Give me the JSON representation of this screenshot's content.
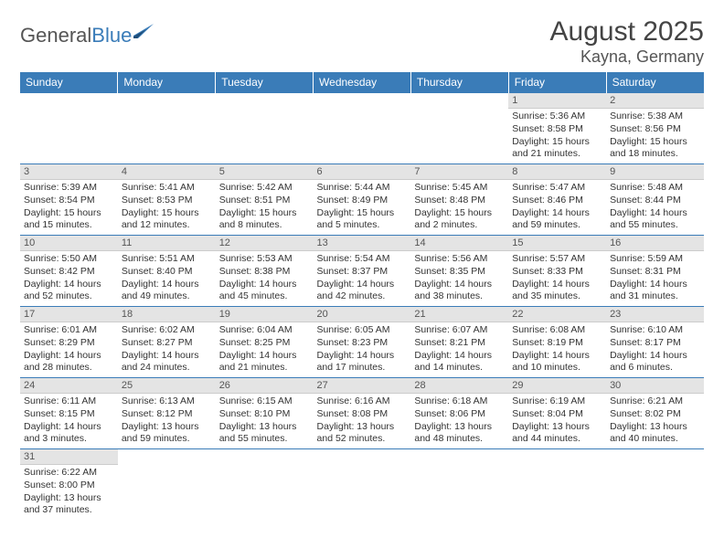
{
  "brand": {
    "part1": "General",
    "part2": "Blue"
  },
  "title": "August 2025",
  "location": "Kayna, Germany",
  "colors": {
    "header_bg": "#3a7cb8",
    "header_text": "#ffffff",
    "daynum_bg": "#e4e4e4",
    "row_border": "#3a7cb8"
  },
  "dayHeaders": [
    "Sunday",
    "Monday",
    "Tuesday",
    "Wednesday",
    "Thursday",
    "Friday",
    "Saturday"
  ],
  "weeks": [
    [
      {
        "n": "",
        "sr": "",
        "ss": "",
        "dl": ""
      },
      {
        "n": "",
        "sr": "",
        "ss": "",
        "dl": ""
      },
      {
        "n": "",
        "sr": "",
        "ss": "",
        "dl": ""
      },
      {
        "n": "",
        "sr": "",
        "ss": "",
        "dl": ""
      },
      {
        "n": "",
        "sr": "",
        "ss": "",
        "dl": ""
      },
      {
        "n": "1",
        "sr": "Sunrise: 5:36 AM",
        "ss": "Sunset: 8:58 PM",
        "dl": "Daylight: 15 hours and 21 minutes."
      },
      {
        "n": "2",
        "sr": "Sunrise: 5:38 AM",
        "ss": "Sunset: 8:56 PM",
        "dl": "Daylight: 15 hours and 18 minutes."
      }
    ],
    [
      {
        "n": "3",
        "sr": "Sunrise: 5:39 AM",
        "ss": "Sunset: 8:54 PM",
        "dl": "Daylight: 15 hours and 15 minutes."
      },
      {
        "n": "4",
        "sr": "Sunrise: 5:41 AM",
        "ss": "Sunset: 8:53 PM",
        "dl": "Daylight: 15 hours and 12 minutes."
      },
      {
        "n": "5",
        "sr": "Sunrise: 5:42 AM",
        "ss": "Sunset: 8:51 PM",
        "dl": "Daylight: 15 hours and 8 minutes."
      },
      {
        "n": "6",
        "sr": "Sunrise: 5:44 AM",
        "ss": "Sunset: 8:49 PM",
        "dl": "Daylight: 15 hours and 5 minutes."
      },
      {
        "n": "7",
        "sr": "Sunrise: 5:45 AM",
        "ss": "Sunset: 8:48 PM",
        "dl": "Daylight: 15 hours and 2 minutes."
      },
      {
        "n": "8",
        "sr": "Sunrise: 5:47 AM",
        "ss": "Sunset: 8:46 PM",
        "dl": "Daylight: 14 hours and 59 minutes."
      },
      {
        "n": "9",
        "sr": "Sunrise: 5:48 AM",
        "ss": "Sunset: 8:44 PM",
        "dl": "Daylight: 14 hours and 55 minutes."
      }
    ],
    [
      {
        "n": "10",
        "sr": "Sunrise: 5:50 AM",
        "ss": "Sunset: 8:42 PM",
        "dl": "Daylight: 14 hours and 52 minutes."
      },
      {
        "n": "11",
        "sr": "Sunrise: 5:51 AM",
        "ss": "Sunset: 8:40 PM",
        "dl": "Daylight: 14 hours and 49 minutes."
      },
      {
        "n": "12",
        "sr": "Sunrise: 5:53 AM",
        "ss": "Sunset: 8:38 PM",
        "dl": "Daylight: 14 hours and 45 minutes."
      },
      {
        "n": "13",
        "sr": "Sunrise: 5:54 AM",
        "ss": "Sunset: 8:37 PM",
        "dl": "Daylight: 14 hours and 42 minutes."
      },
      {
        "n": "14",
        "sr": "Sunrise: 5:56 AM",
        "ss": "Sunset: 8:35 PM",
        "dl": "Daylight: 14 hours and 38 minutes."
      },
      {
        "n": "15",
        "sr": "Sunrise: 5:57 AM",
        "ss": "Sunset: 8:33 PM",
        "dl": "Daylight: 14 hours and 35 minutes."
      },
      {
        "n": "16",
        "sr": "Sunrise: 5:59 AM",
        "ss": "Sunset: 8:31 PM",
        "dl": "Daylight: 14 hours and 31 minutes."
      }
    ],
    [
      {
        "n": "17",
        "sr": "Sunrise: 6:01 AM",
        "ss": "Sunset: 8:29 PM",
        "dl": "Daylight: 14 hours and 28 minutes."
      },
      {
        "n": "18",
        "sr": "Sunrise: 6:02 AM",
        "ss": "Sunset: 8:27 PM",
        "dl": "Daylight: 14 hours and 24 minutes."
      },
      {
        "n": "19",
        "sr": "Sunrise: 6:04 AM",
        "ss": "Sunset: 8:25 PM",
        "dl": "Daylight: 14 hours and 21 minutes."
      },
      {
        "n": "20",
        "sr": "Sunrise: 6:05 AM",
        "ss": "Sunset: 8:23 PM",
        "dl": "Daylight: 14 hours and 17 minutes."
      },
      {
        "n": "21",
        "sr": "Sunrise: 6:07 AM",
        "ss": "Sunset: 8:21 PM",
        "dl": "Daylight: 14 hours and 14 minutes."
      },
      {
        "n": "22",
        "sr": "Sunrise: 6:08 AM",
        "ss": "Sunset: 8:19 PM",
        "dl": "Daylight: 14 hours and 10 minutes."
      },
      {
        "n": "23",
        "sr": "Sunrise: 6:10 AM",
        "ss": "Sunset: 8:17 PM",
        "dl": "Daylight: 14 hours and 6 minutes."
      }
    ],
    [
      {
        "n": "24",
        "sr": "Sunrise: 6:11 AM",
        "ss": "Sunset: 8:15 PM",
        "dl": "Daylight: 14 hours and 3 minutes."
      },
      {
        "n": "25",
        "sr": "Sunrise: 6:13 AM",
        "ss": "Sunset: 8:12 PM",
        "dl": "Daylight: 13 hours and 59 minutes."
      },
      {
        "n": "26",
        "sr": "Sunrise: 6:15 AM",
        "ss": "Sunset: 8:10 PM",
        "dl": "Daylight: 13 hours and 55 minutes."
      },
      {
        "n": "27",
        "sr": "Sunrise: 6:16 AM",
        "ss": "Sunset: 8:08 PM",
        "dl": "Daylight: 13 hours and 52 minutes."
      },
      {
        "n": "28",
        "sr": "Sunrise: 6:18 AM",
        "ss": "Sunset: 8:06 PM",
        "dl": "Daylight: 13 hours and 48 minutes."
      },
      {
        "n": "29",
        "sr": "Sunrise: 6:19 AM",
        "ss": "Sunset: 8:04 PM",
        "dl": "Daylight: 13 hours and 44 minutes."
      },
      {
        "n": "30",
        "sr": "Sunrise: 6:21 AM",
        "ss": "Sunset: 8:02 PM",
        "dl": "Daylight: 13 hours and 40 minutes."
      }
    ],
    [
      {
        "n": "31",
        "sr": "Sunrise: 6:22 AM",
        "ss": "Sunset: 8:00 PM",
        "dl": "Daylight: 13 hours and 37 minutes."
      },
      {
        "n": "",
        "sr": "",
        "ss": "",
        "dl": ""
      },
      {
        "n": "",
        "sr": "",
        "ss": "",
        "dl": ""
      },
      {
        "n": "",
        "sr": "",
        "ss": "",
        "dl": ""
      },
      {
        "n": "",
        "sr": "",
        "ss": "",
        "dl": ""
      },
      {
        "n": "",
        "sr": "",
        "ss": "",
        "dl": ""
      },
      {
        "n": "",
        "sr": "",
        "ss": "",
        "dl": ""
      }
    ]
  ]
}
